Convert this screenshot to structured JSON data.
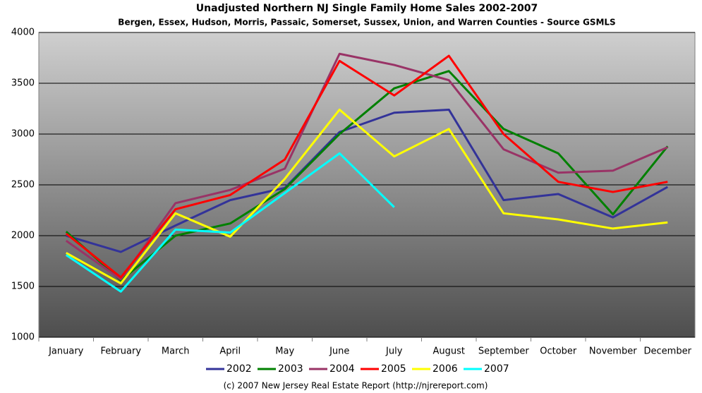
{
  "chart_data": {
    "type": "line",
    "title": "Unadjusted Northern NJ Single Family Home Sales 2002-2007",
    "subtitle": "Bergen, Essex, Hudson, Morris, Passaic, Somerset, Sussex, Union, and Warren Counties - Source GSMLS",
    "caption": "(c) 2007 New Jersey Real Estate Report (http://njrereport.com)",
    "categories": [
      "January",
      "February",
      "March",
      "April",
      "May",
      "June",
      "July",
      "August",
      "September",
      "October",
      "November",
      "December"
    ],
    "series": [
      {
        "name": "2002",
        "color": "#333399",
        "values": [
          2000,
          1840,
          2100,
          2350,
          2470,
          3020,
          3210,
          3240,
          2350,
          2410,
          2180,
          2480
        ]
      },
      {
        "name": "2003",
        "color": "#008000",
        "values": [
          2040,
          1560,
          2000,
          2120,
          2460,
          3000,
          3450,
          3620,
          3050,
          2810,
          2210,
          2880
        ]
      },
      {
        "name": "2004",
        "color": "#993366",
        "values": [
          1950,
          1570,
          2320,
          2450,
          2660,
          3790,
          3680,
          3530,
          2850,
          2620,
          2640,
          2870
        ]
      },
      {
        "name": "2005",
        "color": "#ff0000",
        "values": [
          2020,
          1590,
          2260,
          2400,
          2750,
          3720,
          3380,
          3770,
          3000,
          2530,
          2430,
          2530
        ]
      },
      {
        "name": "2006",
        "color": "#ffff00",
        "values": [
          1830,
          1530,
          2220,
          1990,
          2560,
          3240,
          2780,
          3050,
          2220,
          2160,
          2070,
          2130
        ]
      },
      {
        "name": "2007",
        "color": "#00ffff",
        "values": [
          1810,
          1450,
          2060,
          2030,
          2420,
          2810,
          2280,
          null,
          null,
          null,
          null,
          null
        ]
      }
    ],
    "ylim": [
      1000,
      4000
    ],
    "yticks": [
      1000,
      1500,
      2000,
      2500,
      3000,
      3500,
      4000
    ],
    "grid": true,
    "legend": "bottom"
  }
}
